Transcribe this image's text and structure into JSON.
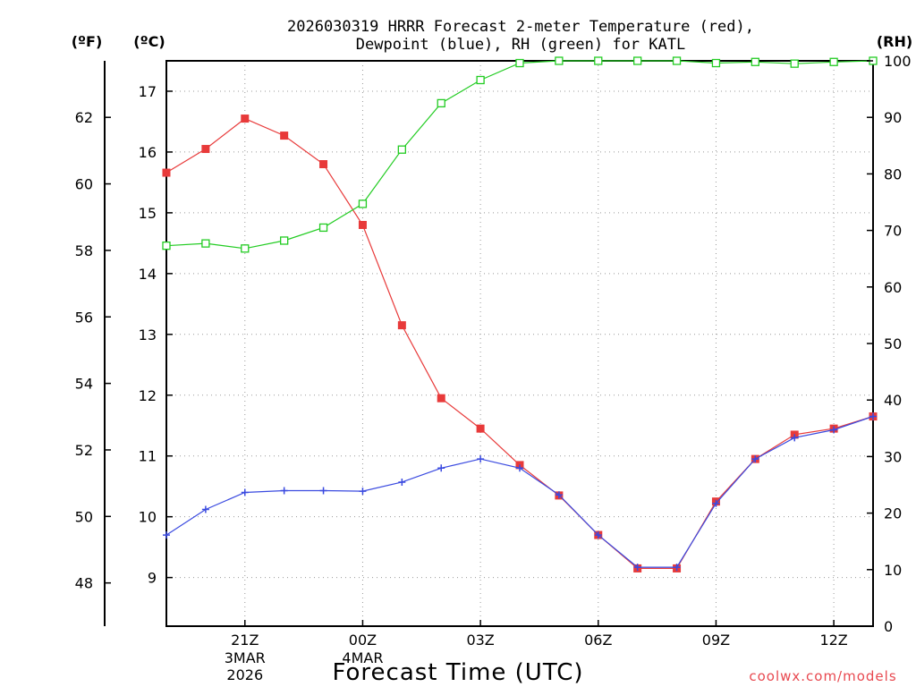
{
  "chart_data": {
    "type": "line",
    "title_lines": [
      "2026030319 HRRR Forecast 2-meter Temperature (red),",
      "Dewpoint (blue), RH (green) for KATL"
    ],
    "xlabel": "Forecast Time (UTC)",
    "x_ticks": [
      {
        "hour": 21,
        "label": "21Z",
        "date": "3MAR",
        "year": "2026"
      },
      {
        "hour": 24,
        "label": "00Z",
        "date": "4MAR",
        "year": ""
      },
      {
        "hour": 27,
        "label": "03Z",
        "date": "",
        "year": ""
      },
      {
        "hour": 30,
        "label": "06Z",
        "date": "",
        "year": ""
      },
      {
        "hour": 33,
        "label": "09Z",
        "date": "",
        "year": ""
      },
      {
        "hour": 36,
        "label": "12Z",
        "date": "",
        "year": ""
      }
    ],
    "x_range": [
      19,
      37
    ],
    "axes": {
      "fahrenheit": {
        "unit_label": "(ºF)",
        "range": [
          46.7,
          63.7
        ],
        "ticks": [
          48,
          50,
          52,
          54,
          56,
          58,
          60,
          62
        ]
      },
      "celsius": {
        "unit_label": "(ºC)",
        "range": [
          8.2,
          17.5
        ],
        "ticks": [
          9,
          10,
          11,
          12,
          13,
          14,
          15,
          16,
          17
        ]
      },
      "rh": {
        "unit_label": "(RH)",
        "range": [
          0,
          100
        ],
        "ticks": [
          0,
          10,
          20,
          30,
          40,
          50,
          60,
          70,
          80,
          90,
          100
        ]
      }
    },
    "grid": true,
    "series": [
      {
        "key": "temperature",
        "axis": "celsius",
        "color": "#e83a3a",
        "marker": "filled-square",
        "x": [
          19,
          20,
          21,
          22,
          23,
          24,
          25,
          26,
          27,
          28,
          29,
          30,
          31,
          32,
          33,
          34,
          35,
          36,
          37
        ],
        "values": [
          15.66,
          16.05,
          16.55,
          16.27,
          15.8,
          14.8,
          13.15,
          11.95,
          11.45,
          10.85,
          10.35,
          9.7,
          9.15,
          9.15,
          10.25,
          10.95,
          11.35,
          11.45,
          11.65
        ]
      },
      {
        "key": "dewpoint",
        "axis": "celsius",
        "color": "#3a4ae0",
        "marker": "plus",
        "x": [
          19,
          20,
          21,
          22,
          23,
          24,
          25,
          26,
          27,
          28,
          29,
          30,
          31,
          32,
          33,
          34,
          35,
          36,
          37
        ],
        "values": [
          9.7,
          10.12,
          10.4,
          10.43,
          10.43,
          10.42,
          10.57,
          10.8,
          10.95,
          10.8,
          10.36,
          9.7,
          9.17,
          9.17,
          10.22,
          10.95,
          11.3,
          11.43,
          11.65
        ]
      },
      {
        "key": "rh",
        "axis": "rh",
        "color": "#22cc22",
        "marker": "open-square",
        "x": [
          19,
          20,
          21,
          22,
          23,
          24,
          25,
          26,
          27,
          28,
          29,
          30,
          31,
          32,
          33,
          34,
          35,
          36,
          37
        ],
        "values": [
          67.3,
          67.7,
          66.8,
          68.2,
          70.5,
          74.7,
          84.3,
          92.5,
          96.6,
          99.6,
          100,
          100,
          100,
          100,
          99.6,
          99.8,
          99.5,
          99.8,
          100
        ]
      }
    ],
    "credit": "coolwx.com/models"
  }
}
